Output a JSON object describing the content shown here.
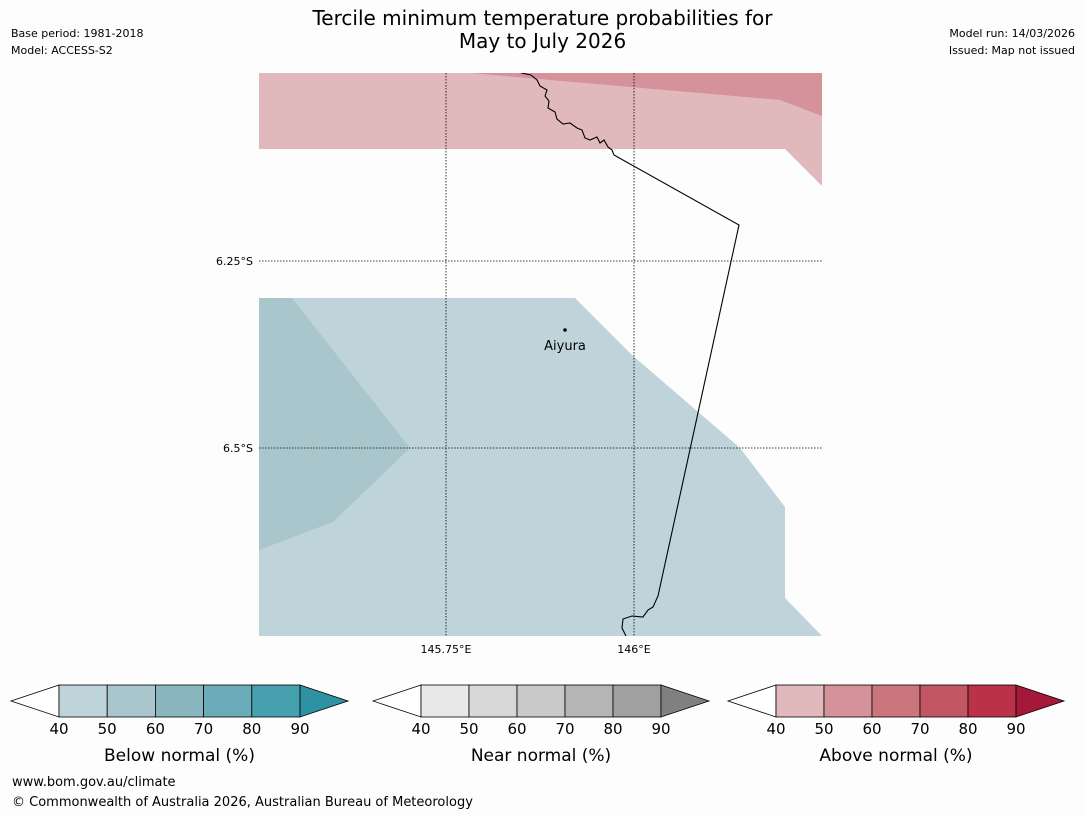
{
  "header": {
    "title_line1": "Tercile minimum temperature probabilities for",
    "title_line2": "May to July 2026",
    "base_period": "Base period: 1981-2018",
    "model": "Model: ACCESS-S2",
    "model_run": "Model run: 14/03/2026",
    "issued": "Issued: Map not issued"
  },
  "map": {
    "lat_labels": [
      "6.25°S",
      "6.5°S"
    ],
    "lon_labels": [
      "145.75°E",
      "146°E"
    ],
    "place": "Aiyura",
    "regions": [
      {
        "category": "Above normal",
        "range": "50-60%",
        "color": "#d5929a"
      },
      {
        "category": "Above normal",
        "range": "40-50%",
        "color": "#e1b8bc"
      },
      {
        "category": "Below normal",
        "range": "40-50%",
        "color": "#bfd4da"
      },
      {
        "category": "Below normal",
        "range": "50-60%",
        "color": "#a8c6cb"
      }
    ]
  },
  "legends": [
    {
      "label": "Below normal (%)",
      "ticks": [
        "40",
        "50",
        "60",
        "70",
        "80",
        "90"
      ],
      "colors": [
        "#bfd4da",
        "#a8c6cb",
        "#89b6be",
        "#6aacb8",
        "#47a0ae",
        "#2e92a3"
      ]
    },
    {
      "label": "Near normal (%)",
      "ticks": [
        "40",
        "50",
        "60",
        "70",
        "80",
        "90"
      ],
      "colors": [
        "#e8e8e8",
        "#d8d8d8",
        "#c9c9c9",
        "#b5b5b5",
        "#a0a0a0",
        "#808080"
      ]
    },
    {
      "label": "Above normal (%)",
      "ticks": [
        "40",
        "50",
        "60",
        "70",
        "80",
        "90"
      ],
      "colors": [
        "#e1b8bc",
        "#d5929a",
        "#cb757d",
        "#c35663",
        "#bb3148",
        "#a6183a"
      ]
    }
  ],
  "footer": {
    "url": "www.bom.gov.au/climate",
    "copyright": "© Commonwealth of Australia 2026, Australian Bureau of Meteorology"
  }
}
